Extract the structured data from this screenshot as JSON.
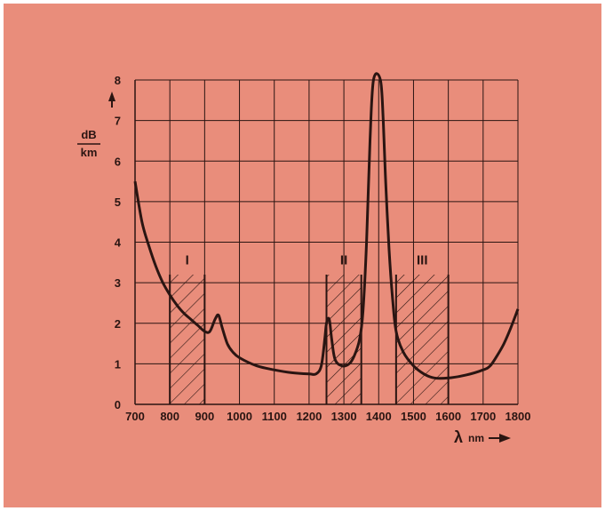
{
  "chart_data": {
    "type": "line",
    "title": "",
    "ylabel_top": "dB",
    "ylabel_bottom": "km",
    "xlabel_symbol": "λ",
    "xlabel_unit": "nm",
    "xlim": [
      700,
      1800
    ],
    "ylim": [
      0,
      8
    ],
    "x_ticks": [
      700,
      800,
      900,
      1000,
      1100,
      1200,
      1300,
      1400,
      1500,
      1600,
      1700,
      1800
    ],
    "y_ticks": [
      0,
      1,
      2,
      3,
      4,
      5,
      6,
      7,
      8
    ],
    "grid": true,
    "colors": {
      "background": "#e98d7b",
      "ink": "#2a1512"
    },
    "windows": [
      {
        "label": "I",
        "x_start": 800,
        "x_end": 900
      },
      {
        "label": "II",
        "x_start": 1250,
        "x_end": 1350
      },
      {
        "label": "III",
        "x_start": 1450,
        "x_end": 1600
      }
    ],
    "series": [
      {
        "points": [
          [
            700,
            5.5
          ],
          [
            720,
            4.5
          ],
          [
            740,
            3.9
          ],
          [
            760,
            3.4
          ],
          [
            780,
            3.0
          ],
          [
            800,
            2.7
          ],
          [
            820,
            2.45
          ],
          [
            840,
            2.25
          ],
          [
            860,
            2.1
          ],
          [
            880,
            1.95
          ],
          [
            900,
            1.8
          ],
          [
            915,
            1.8
          ],
          [
            930,
            2.1
          ],
          [
            940,
            2.2
          ],
          [
            950,
            1.9
          ],
          [
            965,
            1.5
          ],
          [
            980,
            1.3
          ],
          [
            1000,
            1.15
          ],
          [
            1050,
            0.95
          ],
          [
            1100,
            0.85
          ],
          [
            1150,
            0.78
          ],
          [
            1200,
            0.75
          ],
          [
            1220,
            0.75
          ],
          [
            1235,
            0.95
          ],
          [
            1245,
            1.6
          ],
          [
            1250,
            2.0
          ],
          [
            1258,
            2.1
          ],
          [
            1265,
            1.6
          ],
          [
            1275,
            1.1
          ],
          [
            1295,
            0.95
          ],
          [
            1315,
            1.0
          ],
          [
            1330,
            1.2
          ],
          [
            1345,
            1.6
          ],
          [
            1355,
            2.3
          ],
          [
            1365,
            4.0
          ],
          [
            1375,
            6.5
          ],
          [
            1385,
            8.0
          ],
          [
            1405,
            8.0
          ],
          [
            1413,
            7.0
          ],
          [
            1420,
            5.5
          ],
          [
            1430,
            3.8
          ],
          [
            1440,
            2.6
          ],
          [
            1450,
            1.8
          ],
          [
            1470,
            1.3
          ],
          [
            1500,
            0.95
          ],
          [
            1530,
            0.75
          ],
          [
            1560,
            0.65
          ],
          [
            1600,
            0.65
          ],
          [
            1650,
            0.72
          ],
          [
            1700,
            0.85
          ],
          [
            1720,
            0.95
          ],
          [
            1740,
            1.2
          ],
          [
            1760,
            1.5
          ],
          [
            1780,
            1.9
          ],
          [
            1800,
            2.35
          ]
        ]
      }
    ]
  }
}
